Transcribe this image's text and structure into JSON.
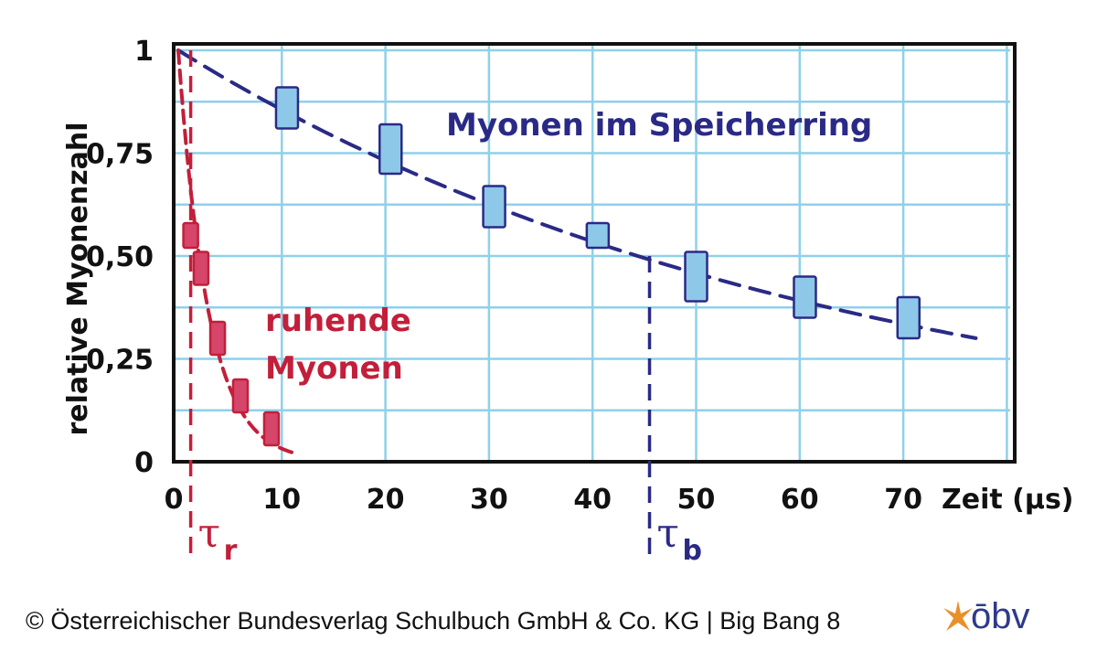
{
  "chart_data": {
    "type": "scatter",
    "ylabel": "relative Myonenzahl",
    "xlabel": "Zeit (µs)",
    "xlim": [
      0,
      80
    ],
    "ylim": [
      0,
      1
    ],
    "x_ticks": [
      {
        "value": 0,
        "label": "0"
      },
      {
        "value": 10,
        "label": "10"
      },
      {
        "value": 20,
        "label": "20"
      },
      {
        "value": 30,
        "label": "30"
      },
      {
        "value": 40,
        "label": "40"
      },
      {
        "value": 50,
        "label": "50"
      },
      {
        "value": 60,
        "label": "60"
      },
      {
        "value": 70,
        "label": "70"
      }
    ],
    "y_ticks": [
      {
        "value": 0,
        "label": "0"
      },
      {
        "value": 0.25,
        "label": "0,25"
      },
      {
        "value": 0.5,
        "label": "0,50"
      },
      {
        "value": 0.75,
        "label": "0,75"
      },
      {
        "value": 1,
        "label": "1"
      }
    ],
    "grid": true,
    "series": [
      {
        "name": "Myonen im Speicherring",
        "color": "#2a2a86",
        "fill": "#8ec8e8",
        "points": [
          {
            "x": 10.5,
            "y": 0.86,
            "err": 0.05
          },
          {
            "x": 20.5,
            "y": 0.76,
            "err": 0.06
          },
          {
            "x": 30.5,
            "y": 0.62,
            "err": 0.05
          },
          {
            "x": 40.5,
            "y": 0.55,
            "err": 0.03
          },
          {
            "x": 50,
            "y": 0.45,
            "err": 0.06
          },
          {
            "x": 60.5,
            "y": 0.4,
            "err": 0.05
          },
          {
            "x": 70.5,
            "y": 0.35,
            "err": 0.05
          }
        ],
        "fit": {
          "type": "exponential",
          "y0": 1,
          "tau": 64,
          "x_end": 77
        }
      },
      {
        "name": "ruhende Myonen",
        "color": "#c21f3a",
        "fill": "#d6456a",
        "points": [
          {
            "x": 1.2,
            "y": 0.55,
            "err": 0.03
          },
          {
            "x": 2.2,
            "y": 0.47,
            "err": 0.04
          },
          {
            "x": 3.8,
            "y": 0.3,
            "err": 0.04
          },
          {
            "x": 6.0,
            "y": 0.16,
            "err": 0.04
          },
          {
            "x": 9.0,
            "y": 0.08,
            "err": 0.04
          }
        ],
        "fit": {
          "type": "exponential",
          "y0": 1,
          "tau": 2.9,
          "x_end": 11
        }
      }
    ],
    "markers": [
      {
        "name": "τ_b",
        "x": 45.5,
        "y_top": 0.5,
        "color": "#2a2a86",
        "symbol": "τ",
        "sub": "b"
      },
      {
        "name": "τ_r",
        "x": 1.2,
        "y_top": 1.0,
        "color": "#c21f3a",
        "symbol": "τ",
        "sub": "r"
      }
    ],
    "annotations": {
      "blue_label": "Myonen im Speicherring",
      "red_label_line1": "ruhende",
      "red_label_line2": "Myonen"
    }
  },
  "footer": {
    "copyright": "© Österreichischer Bundesverlag Schulbuch GmbH & Co. KG |  Big Bang 8",
    "logo_text": "ōbv",
    "logo_color": "#2d3a8c",
    "logo_star_color": "#e8902a"
  }
}
